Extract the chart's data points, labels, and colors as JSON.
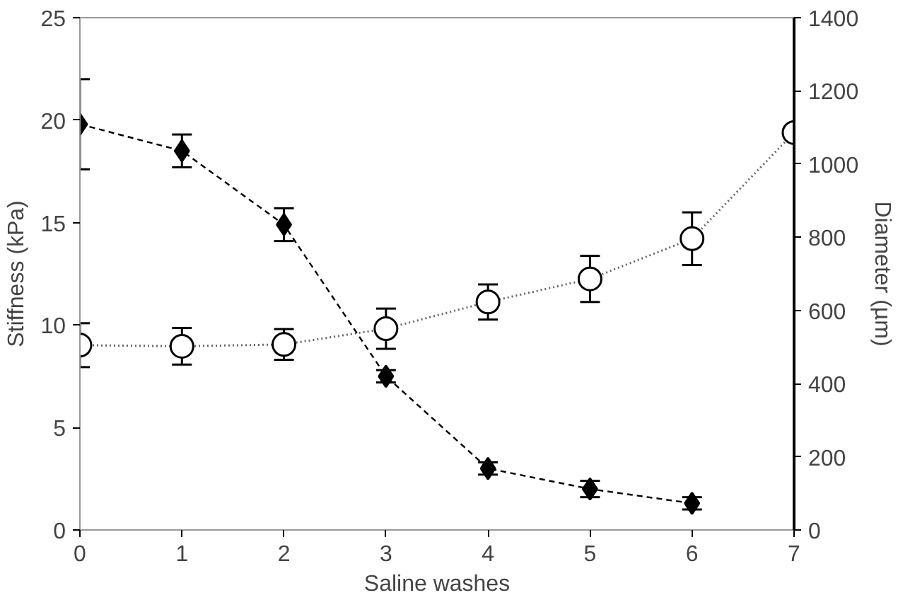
{
  "chart_data": {
    "type": "line",
    "xlabel": "Saline washes",
    "ylabel": "Stiffness (kPa)",
    "y2label": "Diameter (µm)",
    "x": [
      0,
      1,
      2,
      3,
      4,
      5,
      6,
      7
    ],
    "xlim": [
      0,
      7
    ],
    "xticks": [
      0,
      1,
      2,
      3,
      4,
      5,
      6,
      7
    ],
    "ylim": [
      0,
      25
    ],
    "yticks": [
      0,
      5,
      10,
      15,
      20,
      25
    ],
    "y2lim": [
      0,
      1400
    ],
    "y2ticks": [
      0,
      200,
      400,
      600,
      800,
      1000,
      1200,
      1400
    ],
    "grid": false,
    "series": [
      {
        "color": "#000000",
        "marker": "diamond",
        "line_style": "dashed",
        "x": [
          0,
          1,
          2,
          3,
          4,
          5,
          6
        ],
        "values": [
          19.8,
          18.5,
          14.9,
          7.5,
          3.0,
          2.0,
          1.3
        ],
        "errors": [
          2.2,
          0.8,
          0.8,
          0.3,
          0.3,
          0.4,
          0.3
        ]
      },
      {
        "color": "#000000",
        "marker": "circle",
        "line_style": "dotted",
        "axis": "y2",
        "values": [
          505,
          502,
          507,
          550,
          623,
          686,
          796,
          1086
        ],
        "errors": [
          60,
          50,
          42,
          55,
          48,
          63,
          72,
          null
        ]
      }
    ]
  }
}
